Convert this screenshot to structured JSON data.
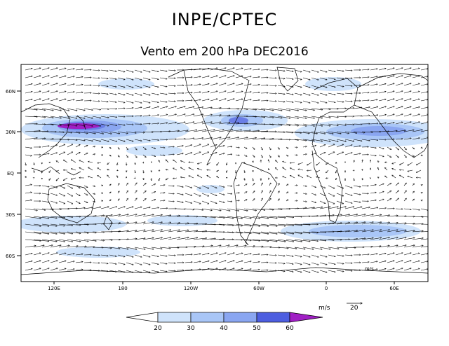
{
  "header": {
    "title": "INPE/CPTEC",
    "subtitle": "Vento em 200 hPa DEC2016"
  },
  "map": {
    "lat_ticks": [
      "60N",
      "30N",
      "EQ",
      "30S",
      "60S"
    ],
    "lon_ticks": [
      "120E",
      "180",
      "120W",
      "60W",
      "0",
      "60E"
    ],
    "vector_label": "m/s"
  },
  "legend": {
    "levels": [
      "20",
      "30",
      "40",
      "50",
      "60"
    ],
    "colors": [
      "#ffffff",
      "#cfe3fb",
      "#a9c6f7",
      "#8aa6f1",
      "#6a7ee6",
      "#4d4dd8",
      "#a01fc4"
    ],
    "unit": "m/s",
    "reference_vector": "20"
  }
}
